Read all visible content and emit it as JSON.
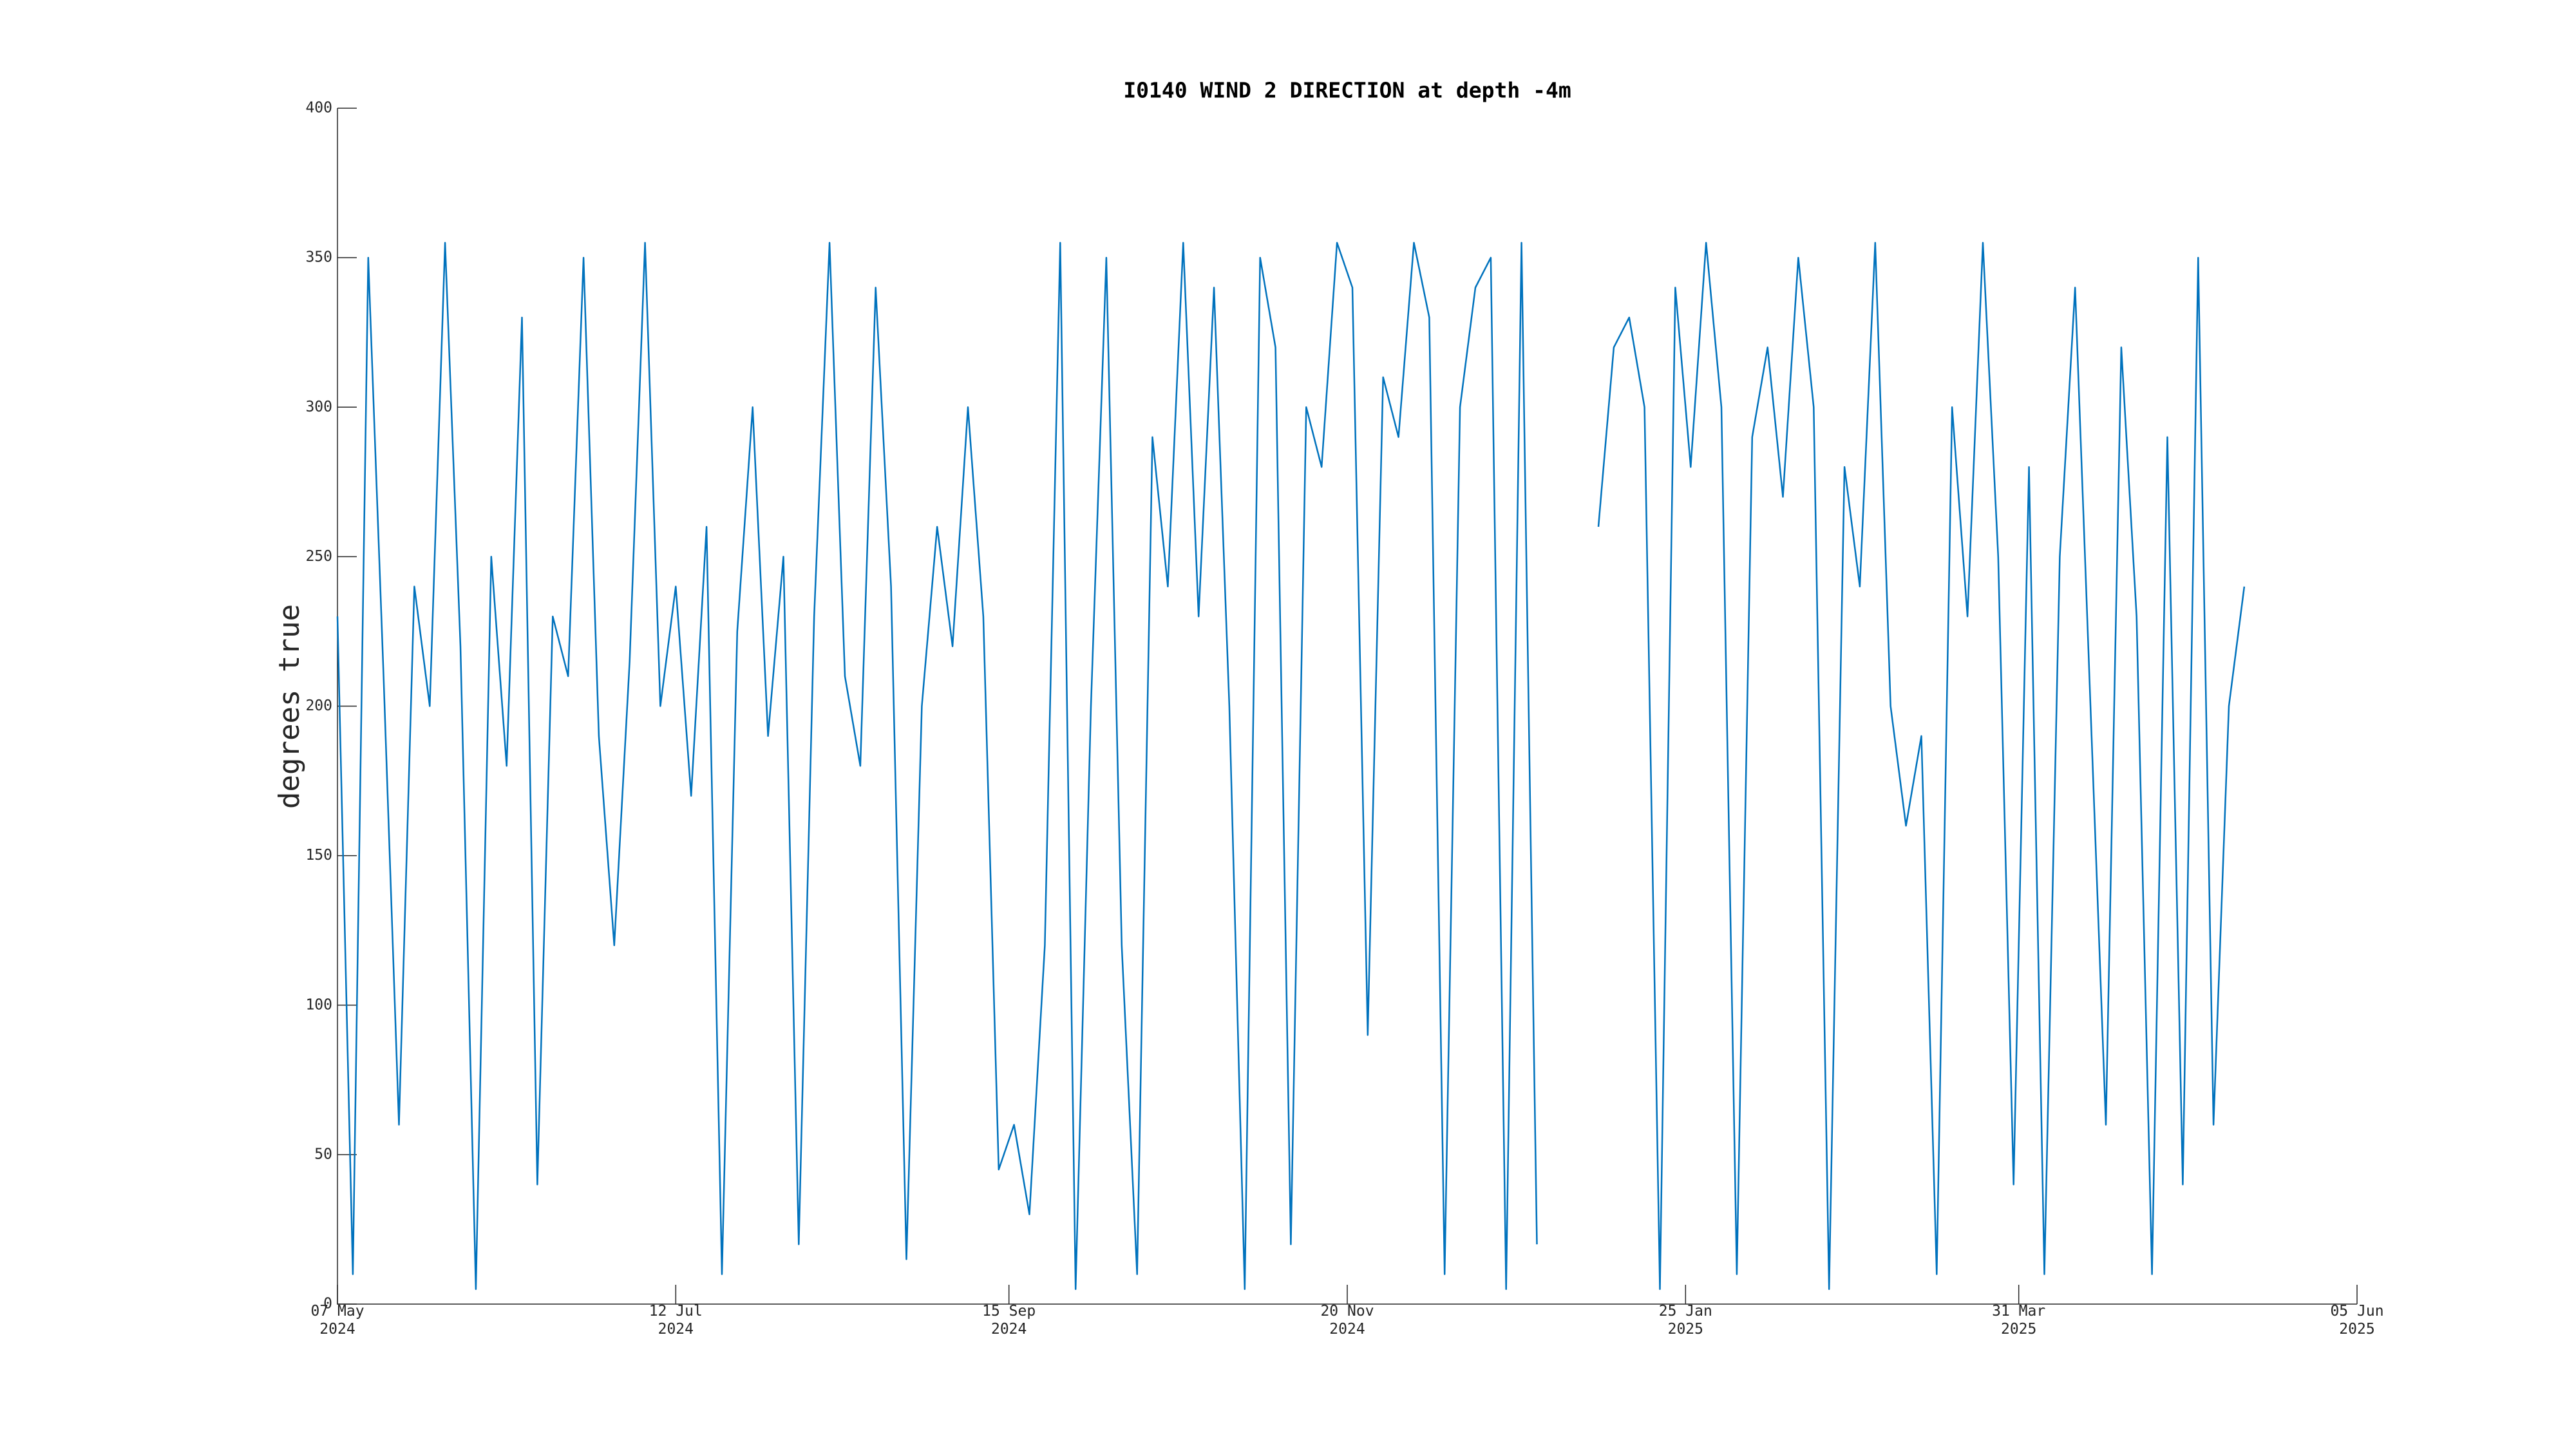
{
  "chart_data": {
    "type": "line",
    "title": "I0140 WIND 2 DIRECTION at depth -4m",
    "ylabel": "degrees true",
    "color": "#0072bd",
    "x": [
      "2024-05-07",
      "2024-05-10",
      "2024-05-13",
      "2024-05-16",
      "2024-05-19",
      "2024-05-22",
      "2024-05-25",
      "2024-05-28",
      "2024-05-31",
      "2024-06-03",
      "2024-06-06",
      "2024-06-09",
      "2024-06-12",
      "2024-06-15",
      "2024-06-18",
      "2024-06-21",
      "2024-06-24",
      "2024-06-27",
      "2024-06-30",
      "2024-07-03",
      "2024-07-06",
      "2024-07-09",
      "2024-07-12",
      "2024-07-15",
      "2024-07-18",
      "2024-07-21",
      "2024-07-24",
      "2024-07-27",
      "2024-07-30",
      "2024-08-02",
      "2024-08-05",
      "2024-08-08",
      "2024-08-11",
      "2024-08-14",
      "2024-08-17",
      "2024-08-20",
      "2024-08-23",
      "2024-08-26",
      "2024-08-29",
      "2024-09-01",
      "2024-09-04",
      "2024-09-07",
      "2024-09-10",
      "2024-09-13",
      "2024-09-16",
      "2024-09-19",
      "2024-09-22",
      "2024-09-25",
      "2024-09-28",
      "2024-10-01",
      "2024-10-04",
      "2024-10-07",
      "2024-10-10",
      "2024-10-13",
      "2024-10-16",
      "2024-10-19",
      "2024-10-22",
      "2024-10-25",
      "2024-10-28",
      "2024-10-31",
      "2024-11-03",
      "2024-11-06",
      "2024-11-09",
      "2024-11-12",
      "2024-11-15",
      "2024-11-18",
      "2024-11-21",
      "2024-11-24",
      "2024-11-27",
      "2024-11-30",
      "2024-12-03",
      "2024-12-06",
      "2024-12-09",
      "2024-12-12",
      "2024-12-15",
      "2024-12-18",
      "2024-12-21",
      "2024-12-24",
      "2024-12-27",
      "2024-12-30",
      "2025-01-02",
      "2025-01-05",
      "2025-01-08",
      "2025-01-11",
      "2025-01-14",
      "2025-01-17",
      "2025-01-20",
      "2025-01-23",
      "2025-01-26",
      "2025-01-29",
      "2025-02-01",
      "2025-02-04",
      "2025-02-07",
      "2025-02-10",
      "2025-02-13",
      "2025-02-16",
      "2025-02-19",
      "2025-02-22",
      "2025-02-25",
      "2025-02-28",
      "2025-03-03",
      "2025-03-06",
      "2025-03-09",
      "2025-03-12",
      "2025-03-15",
      "2025-03-18",
      "2025-03-21",
      "2025-03-24",
      "2025-03-27",
      "2025-03-30",
      "2025-04-02",
      "2025-04-05",
      "2025-04-08",
      "2025-04-11",
      "2025-04-14",
      "2025-04-17",
      "2025-04-20",
      "2025-04-23",
      "2025-04-26",
      "2025-04-29",
      "2025-05-02",
      "2025-05-05",
      "2025-05-08",
      "2025-05-11",
      "2025-05-14"
    ],
    "values": [
      230,
      10,
      350,
      210,
      60,
      240,
      200,
      355,
      220,
      5,
      250,
      180,
      330,
      40,
      230,
      210,
      350,
      190,
      120,
      215,
      355,
      200,
      240,
      170,
      260,
      10,
      225,
      300,
      190,
      250,
      20,
      230,
      355,
      210,
      180,
      340,
      240,
      15,
      200,
      260,
      220,
      300,
      230,
      45,
      60,
      30,
      120,
      355,
      5,
      200,
      350,
      120,
      10,
      290,
      240,
      355,
      230,
      340,
      200,
      5,
      350,
      320,
      20,
      300,
      280,
      355,
      340,
      90,
      310,
      290,
      355,
      330,
      10,
      300,
      340,
      350,
      5,
      355,
      20,
      null,
      null,
      null,
      260,
      320,
      330,
      300,
      5,
      340,
      280,
      355,
      300,
      10,
      290,
      320,
      270,
      350,
      300,
      5,
      280,
      240,
      355,
      200,
      160,
      190,
      10,
      300,
      230,
      355,
      250,
      40,
      280,
      10,
      250,
      340,
      200,
      60,
      320,
      230,
      10,
      290,
      40,
      350,
      60,
      200,
      240
    ],
    "xlim": [
      "2024-05-07",
      "2025-06-05"
    ],
    "xticks": [
      {
        "value": "2024-05-07",
        "label": "07 May 2024"
      },
      {
        "value": "2024-07-12",
        "label": "12 Jul 2024"
      },
      {
        "value": "2024-09-15",
        "label": "15 Sep 2024"
      },
      {
        "value": "2024-11-20",
        "label": "20 Nov 2024"
      },
      {
        "value": "2025-01-25",
        "label": "25 Jan 2025"
      },
      {
        "value": "2025-03-31",
        "label": "31 Mar 2025"
      },
      {
        "value": "2025-06-05",
        "label": "05 Jun 2025"
      }
    ],
    "ylim": [
      0,
      400
    ],
    "yticks": [
      0,
      50,
      100,
      150,
      200,
      250,
      300,
      350,
      400
    ]
  }
}
